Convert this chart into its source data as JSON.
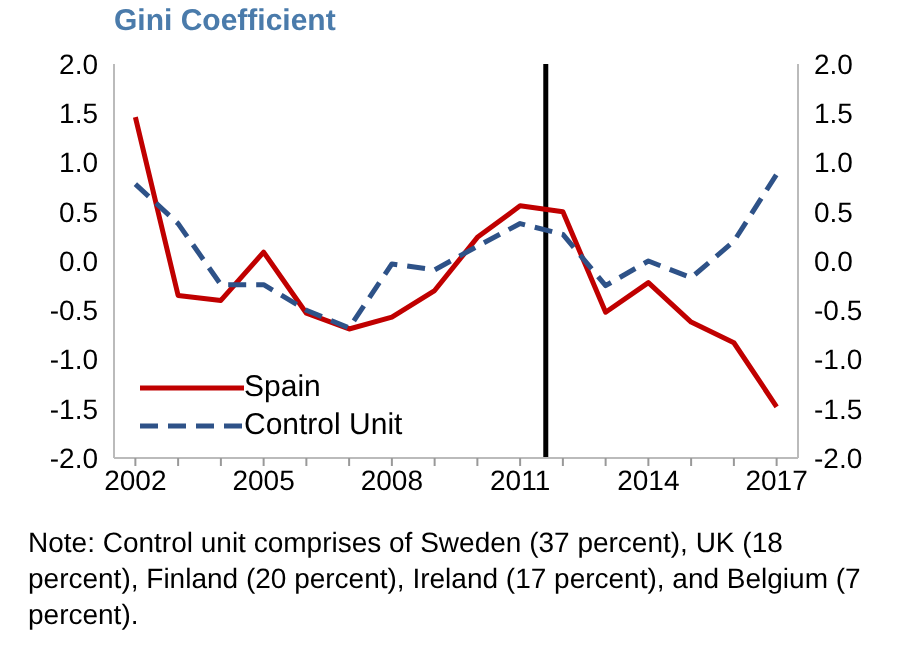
{
  "chart_data": {
    "type": "line",
    "title": "Gini Coefficient",
    "x": [
      2002,
      2003,
      2004,
      2005,
      2006,
      2007,
      2008,
      2009,
      2010,
      2011,
      2012,
      2013,
      2014,
      2015,
      2016,
      2017
    ],
    "series": [
      {
        "name": "Spain",
        "color": "#c00000",
        "line_style": "solid",
        "values": [
          1.46,
          -0.35,
          -0.4,
          0.09,
          -0.53,
          -0.69,
          -0.57,
          -0.3,
          0.24,
          0.56,
          0.5,
          -0.52,
          -0.22,
          -0.62,
          -0.83,
          -1.48
        ]
      },
      {
        "name": "Control Unit",
        "color": "#2e5288",
        "line_style": "dashed",
        "values": [
          0.78,
          0.38,
          -0.24,
          -0.24,
          -0.5,
          -0.68,
          -0.03,
          -0.09,
          0.15,
          0.38,
          0.27,
          -0.25,
          0.0,
          -0.17,
          0.2,
          0.88
        ]
      }
    ],
    "xlim": [
      2001.5,
      2017.5
    ],
    "xticks": [
      2002,
      {
        "value": 2003,
        "label": null
      },
      {
        "value": 2004,
        "label": null
      },
      2005,
      {
        "value": 2006,
        "label": null
      },
      {
        "value": 2007,
        "label": null
      },
      2008,
      {
        "value": 2009,
        "label": null
      },
      {
        "value": 2010,
        "label": null
      },
      2011,
      {
        "value": 2012,
        "label": null
      },
      {
        "value": 2013,
        "label": null
      },
      2014,
      {
        "value": 2015,
        "label": null
      },
      {
        "value": 2016,
        "label": null
      },
      2017
    ],
    "ylim": [
      -2.0,
      2.0
    ],
    "yticks": [
      {
        "value": -2,
        "label": "-2.0"
      },
      {
        "value": -1.5,
        "label": "-1.5"
      },
      {
        "value": -1,
        "label": "-1.0"
      },
      {
        "value": -0.5,
        "label": "-0.5"
      },
      {
        "value": 0,
        "label": "0.0"
      },
      {
        "value": 0.5,
        "label": "0.5"
      },
      {
        "value": 1,
        "label": "1.0"
      },
      {
        "value": 1.5,
        "label": "1.5"
      },
      {
        "value": 2,
        "label": "2.0"
      }
    ],
    "y2lim": [
      -2.0,
      2.0
    ],
    "y2ticks": [
      {
        "value": -2,
        "label": "-2.0"
      },
      {
        "value": -1.5,
        "label": "-1.5"
      },
      {
        "value": -1,
        "label": "-1.0"
      },
      {
        "value": -0.5,
        "label": "-0.5"
      },
      {
        "value": 0,
        "label": "0.0"
      },
      {
        "value": 0.5,
        "label": "0.5"
      },
      {
        "value": 1,
        "label": "1.0"
      },
      {
        "value": 1.5,
        "label": "1.5"
      },
      {
        "value": 2,
        "label": "2.0"
      }
    ],
    "ref_lines": [
      {
        "axis": "x",
        "value": 2011.6,
        "color": "#000000"
      }
    ],
    "legend": "bottom left",
    "marker": "none",
    "annotations": [
      "Note: Control unit comprises of Sweden (37 percent), UK (18 percent), Finland (20 percent), Ireland (17 percent), and Belgium (7 percent)."
    ]
  }
}
